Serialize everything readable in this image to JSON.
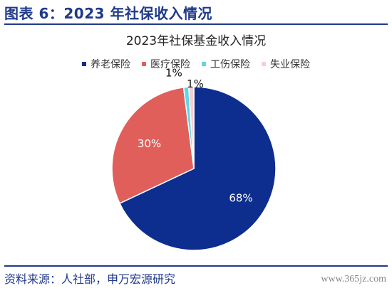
{
  "figure": {
    "title": "图表 6：2023 年社保收入情况",
    "source": "资料来源：人社部，申万宏源研究",
    "watermark": "www.365jz.com"
  },
  "chart_data": {
    "type": "pie",
    "title": "2023年社保基金收入情况",
    "legend_position": "top",
    "slices": [
      {
        "name": "养老保险",
        "value": 68,
        "label": "68%",
        "color": "#0d2d8f"
      },
      {
        "name": "医疗保险",
        "value": 30,
        "label": "30%",
        "color": "#e05f5b"
      },
      {
        "name": "工伤保险",
        "value": 1,
        "label": "1%",
        "color": "#5dd6ea"
      },
      {
        "name": "失业保险",
        "value": 1,
        "label": "1%",
        "color": "#f7cfd0"
      }
    ]
  }
}
